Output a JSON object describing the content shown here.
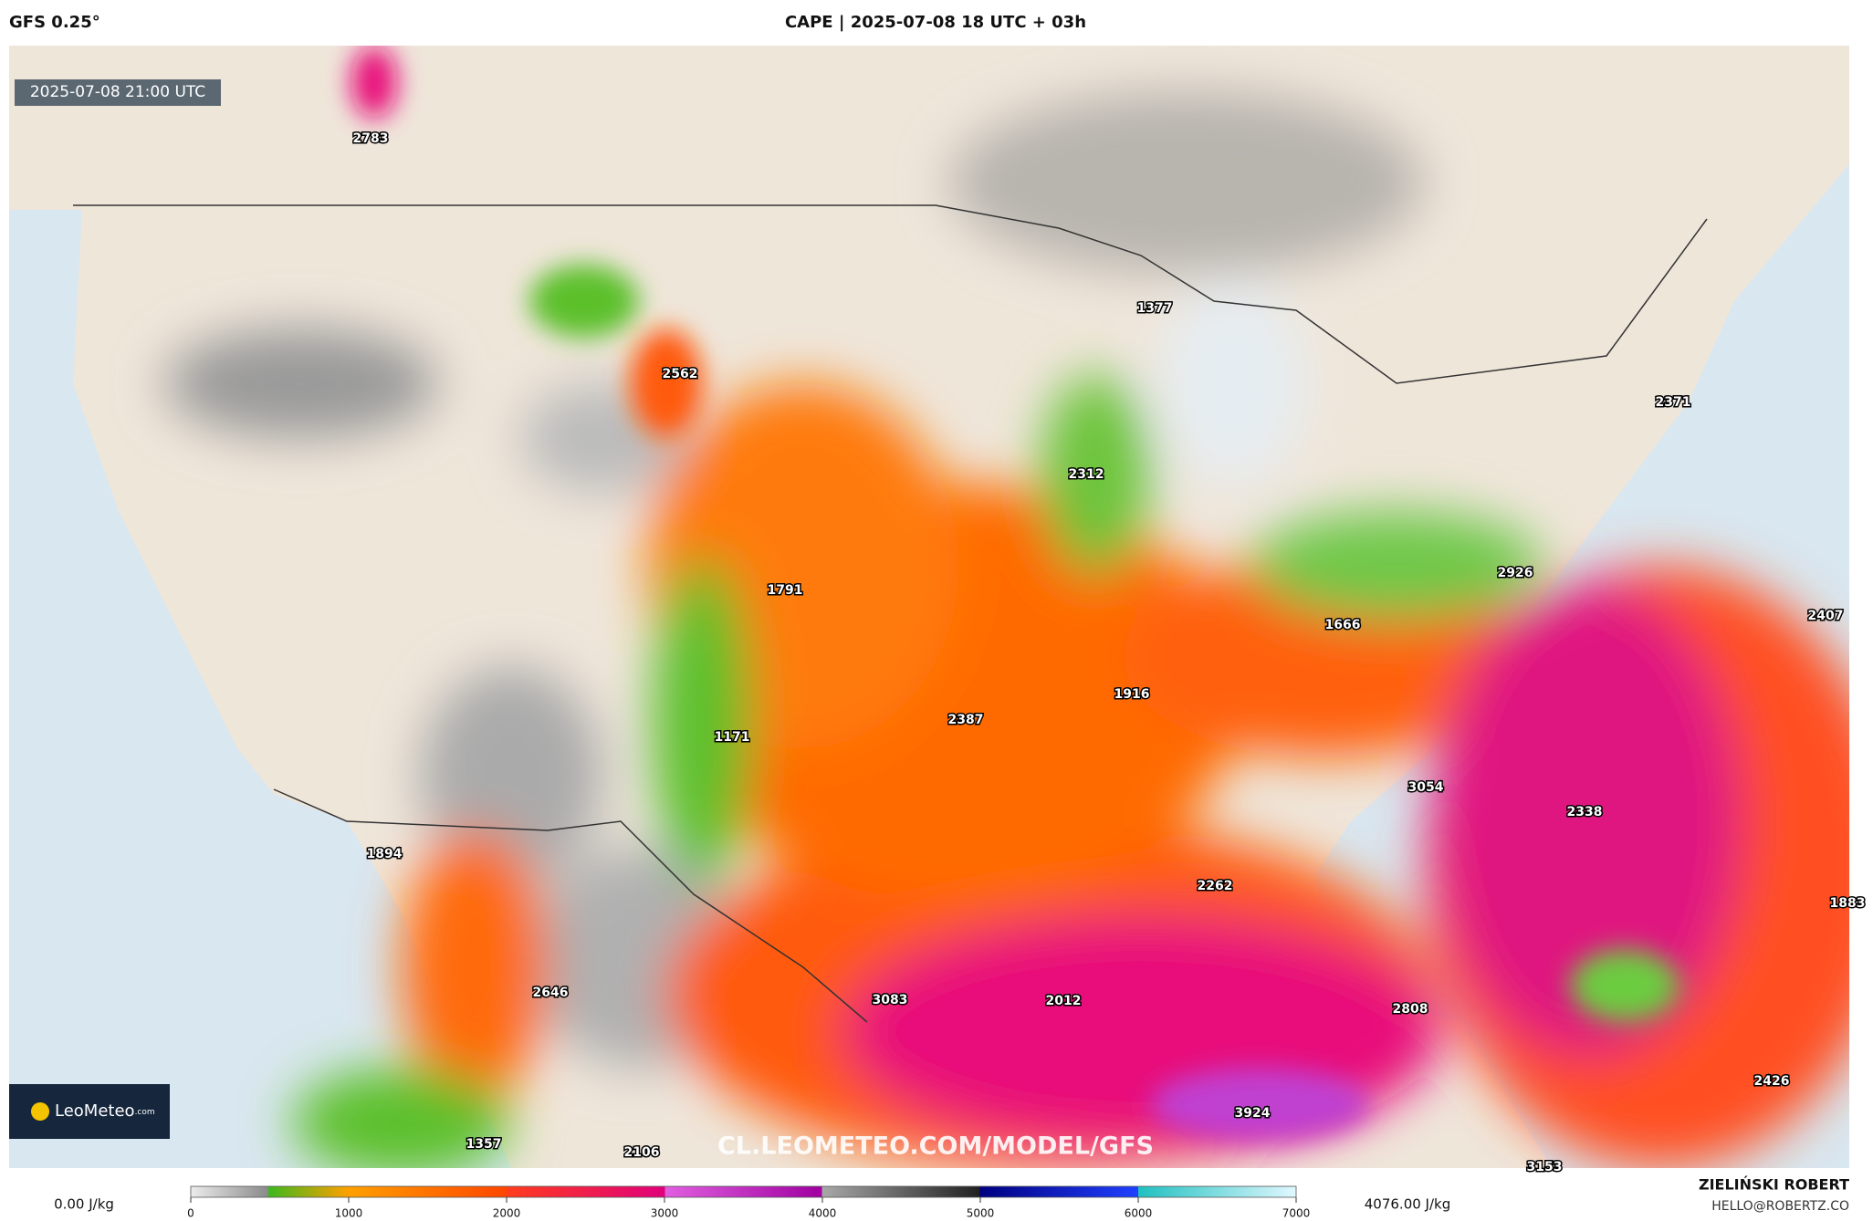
{
  "header": {
    "model": "GFS 0.25°",
    "title": "CAPE | 2025-07-08 18 UTC + 03h"
  },
  "map": {
    "valid_time": "2025-07-08 21:00 UTC",
    "watermark": "CL.LEOMETEO.COM/MODEL/GFS",
    "logo": {
      "name": "LeoMeteo",
      "suffix": ".com"
    },
    "labels": [
      2783,
      2562,
      1377,
      2312,
      2371,
      2926,
      1791,
      1666,
      2407,
      1916,
      2387,
      1171,
      3054,
      2338,
      1894,
      2262,
      1883,
      2646,
      3083,
      2012,
      2808,
      2426,
      3924,
      1357,
      2106,
      3153
    ]
  },
  "colorbar": {
    "min_label": "0.00 J/kg",
    "max_label": "4076.00 J/kg",
    "range": [
      0,
      7000
    ],
    "ticks": [
      0,
      1000,
      2000,
      3000,
      4000,
      5000,
      6000,
      7000
    ]
  },
  "credits": {
    "author": "ZIELIŃSKI ROBERT",
    "contact": "HELLO@ROBERTZ.CO"
  }
}
